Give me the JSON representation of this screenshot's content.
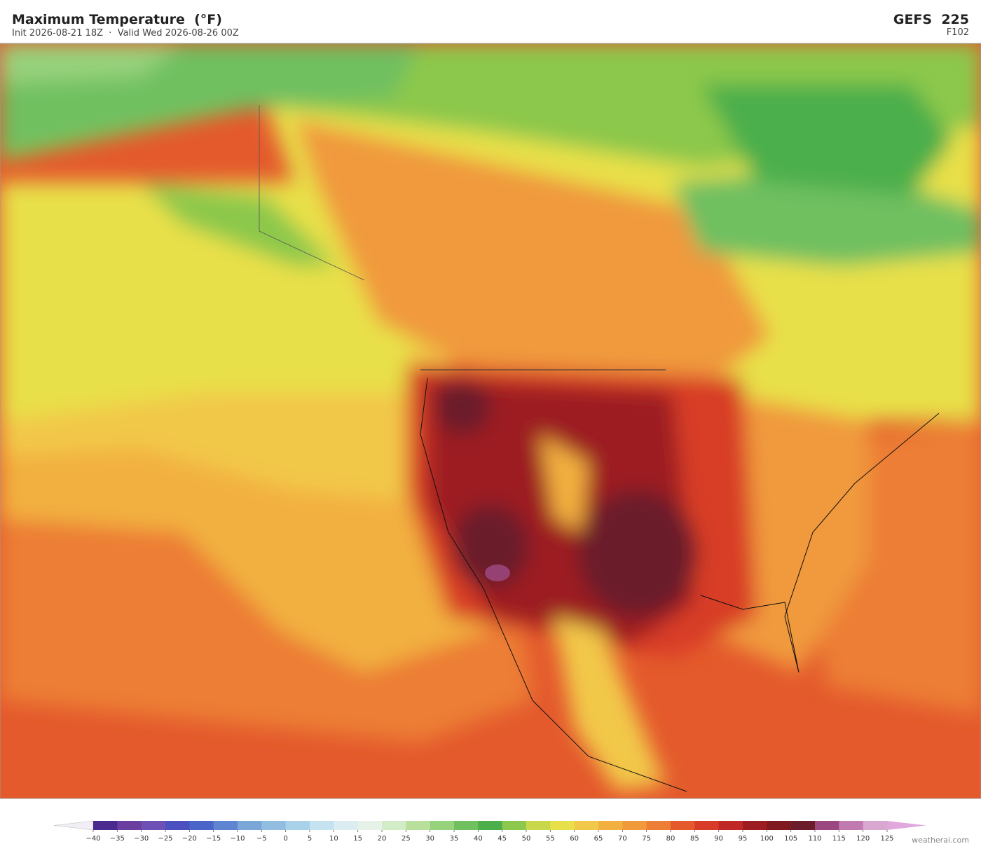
{
  "header": {
    "title": "Maximum Temperature  (°F)",
    "subtitle": "Init 2026-08-21 18Z  ·  Valid Wed 2026-08-26 00Z",
    "model": "GEFS  225",
    "forecast_hour": "F102"
  },
  "colorbar": {
    "ticks": [
      {
        "value": -40,
        "label": "−40"
      },
      {
        "value": -35,
        "label": "−35"
      },
      {
        "value": -30,
        "label": "−30"
      },
      {
        "value": -25,
        "label": "−25"
      },
      {
        "value": -20,
        "label": "−20"
      },
      {
        "value": -15,
        "label": "−15"
      },
      {
        "value": -10,
        "label": "−10"
      },
      {
        "value": -5,
        "label": "−5"
      },
      0,
      5,
      10,
      15,
      20,
      25,
      30,
      35,
      40,
      45,
      50,
      55,
      60,
      65,
      70,
      75,
      80,
      85,
      90,
      95,
      100,
      105,
      110,
      115,
      120,
      125
    ],
    "colors": [
      "#4b2a8f",
      "#6a3fa0",
      "#6d4fb5",
      "#4b4fc0",
      "#4a64c8",
      "#5f85d0",
      "#7aa6d8",
      "#91bde0",
      "#a9d2ea",
      "#c4e2ef",
      "#dcedf2",
      "#e6f2e8",
      "#d2ecc8",
      "#b8e09c",
      "#97d27c",
      "#70c060",
      "#4caf4c",
      "#8cc84c",
      "#c8d84a",
      "#e8e04a",
      "#f2c84a",
      "#f2b040",
      "#f09a3c",
      "#ec7e36",
      "#e45a2c",
      "#d83c28",
      "#c02828",
      "#9c1c22",
      "#801820",
      "#6a1c2a",
      "#9c4880",
      "#c07ab0",
      "#d8a8d0"
    ],
    "under_color": "#f2eef6",
    "over_color": "#e0a8dc"
  },
  "credit": "weatherai.com"
}
